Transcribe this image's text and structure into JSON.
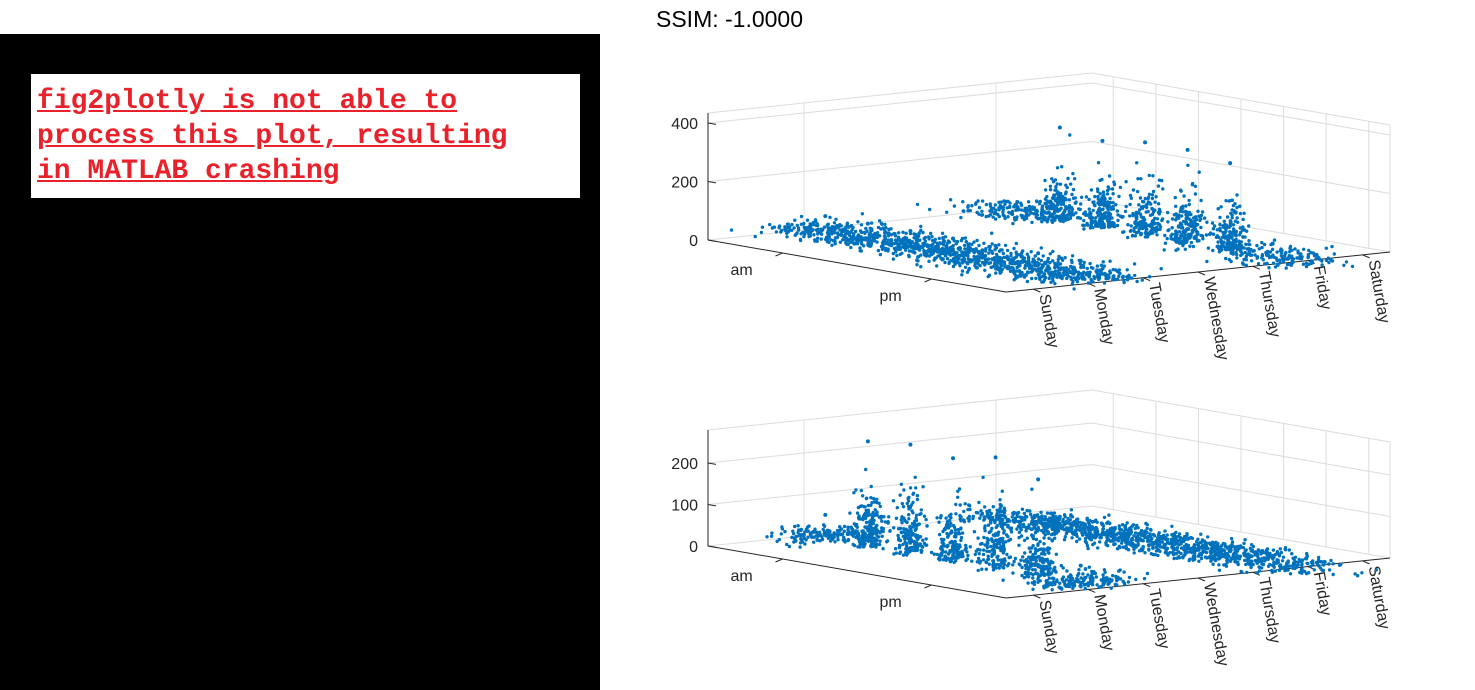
{
  "title": "SSIM: -1.0000",
  "error_message": "fig2plotly is not able to\nprocess this plot, resulting\nin MATLAB crashing",
  "colors": {
    "marker": "#0072bd",
    "error_text": "#e8212a",
    "panel": "#000000"
  },
  "chart_data": [
    {
      "type": "scatter",
      "x_categories": [
        "Sunday",
        "Monday",
        "Tuesday",
        "Wednesday",
        "Thursday",
        "Friday",
        "Saturday"
      ],
      "y_categories": [
        "am",
        "pm"
      ],
      "z_ticks": [
        0,
        200,
        400
      ],
      "zlim": [
        0,
        400
      ],
      "grid": true,
      "series": [
        {
          "day": "Sunday",
          "period": "am",
          "spread": 60,
          "peak": 60
        },
        {
          "day": "Monday",
          "period": "am",
          "spread": 60,
          "peak": 60
        },
        {
          "day": "Tuesday",
          "period": "am",
          "spread": 60,
          "peak": 60
        },
        {
          "day": "Wednesday",
          "period": "am",
          "spread": 60,
          "peak": 60
        },
        {
          "day": "Thursday",
          "period": "am",
          "spread": 60,
          "peak": 60
        },
        {
          "day": "Friday",
          "period": "am",
          "spread": 60,
          "peak": 60
        },
        {
          "day": "Saturday",
          "period": "am",
          "spread": 60,
          "peak": 60
        },
        {
          "day": "Sunday",
          "period": "pm",
          "spread": 80,
          "peak": 40
        },
        {
          "day": "Monday",
          "period": "pm",
          "spread": 25,
          "peak": 320
        },
        {
          "day": "Tuesday",
          "period": "pm",
          "spread": 25,
          "peak": 300
        },
        {
          "day": "Wednesday",
          "period": "pm",
          "spread": 25,
          "peak": 320
        },
        {
          "day": "Thursday",
          "period": "pm",
          "spread": 25,
          "peak": 320
        },
        {
          "day": "Friday",
          "period": "pm",
          "spread": 25,
          "peak": 300
        },
        {
          "day": "Saturday",
          "period": "pm",
          "spread": 80,
          "peak": 50
        }
      ]
    },
    {
      "type": "scatter",
      "x_categories": [
        "Sunday",
        "Monday",
        "Tuesday",
        "Wednesday",
        "Thursday",
        "Friday",
        "Saturday"
      ],
      "y_categories": [
        "am",
        "pm"
      ],
      "z_ticks": [
        0,
        100,
        200
      ],
      "zlim": [
        0,
        280
      ],
      "grid": true,
      "series": [
        {
          "day": "Sunday",
          "period": "am",
          "spread": 30,
          "peak": 60
        },
        {
          "day": "Monday",
          "period": "am",
          "spread": 25,
          "peak": 255
        },
        {
          "day": "Tuesday",
          "period": "am",
          "spread": 25,
          "peak": 265
        },
        {
          "day": "Wednesday",
          "period": "am",
          "spread": 25,
          "peak": 250
        },
        {
          "day": "Thursday",
          "period": "am",
          "spread": 25,
          "peak": 270
        },
        {
          "day": "Friday",
          "period": "am",
          "spread": 25,
          "peak": 235
        },
        {
          "day": "Saturday",
          "period": "am",
          "spread": 40,
          "peak": 45
        },
        {
          "day": "Sunday",
          "period": "pm",
          "spread": 80,
          "peak": 15
        },
        {
          "day": "Monday",
          "period": "pm",
          "spread": 50,
          "peak": 25
        },
        {
          "day": "Tuesday",
          "period": "pm",
          "spread": 50,
          "peak": 25
        },
        {
          "day": "Wednesday",
          "period": "pm",
          "spread": 50,
          "peak": 25
        },
        {
          "day": "Thursday",
          "period": "pm",
          "spread": 50,
          "peak": 25
        },
        {
          "day": "Friday",
          "period": "pm",
          "spread": 50,
          "peak": 25
        },
        {
          "day": "Saturday",
          "period": "pm",
          "spread": 80,
          "peak": 20
        }
      ]
    }
  ]
}
